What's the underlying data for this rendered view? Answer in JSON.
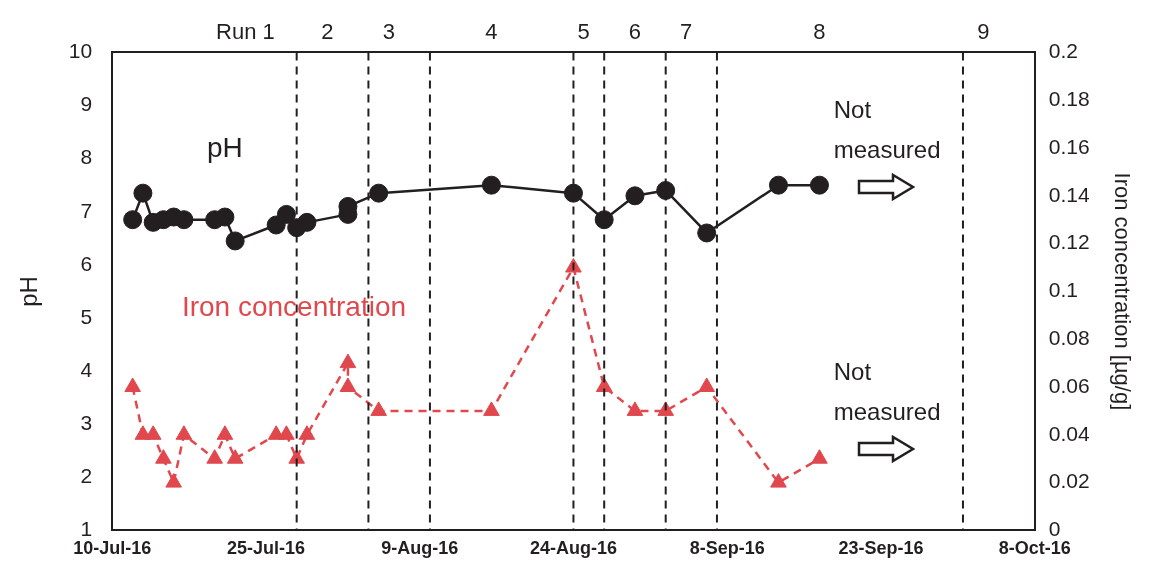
{
  "chart_data": {
    "type": "line",
    "ylabel": "pH",
    "y2label": "Iron concentration [µg/g]",
    "x": [
      "2016-07-12",
      "2016-07-13",
      "2016-07-14",
      "2016-07-15",
      "2016-07-16",
      "2016-07-17",
      "2016-07-20",
      "2016-07-21",
      "2016-07-22",
      "2016-07-26",
      "2016-07-27",
      "2016-07-28",
      "2016-07-29",
      "2016-08-02",
      "2016-08-02",
      "2016-08-05",
      "2016-08-16",
      "2016-08-24",
      "2016-08-27",
      "2016-08-30",
      "2016-09-02",
      "2016-09-06",
      "2016-09-13",
      "2016-09-17"
    ],
    "series": [
      {
        "name": "pH",
        "color": "#231f20",
        "marker": "circle",
        "line_style": "solid",
        "values": [
          6.85,
          7.35,
          6.8,
          6.85,
          6.9,
          6.85,
          6.85,
          6.9,
          6.45,
          6.75,
          6.95,
          6.7,
          6.8,
          6.95,
          7.1,
          7.35,
          7.5,
          7.35,
          6.85,
          7.3,
          7.4,
          6.6,
          7.5,
          7.5
        ]
      },
      {
        "name": "Iron concentration",
        "color": "#e0484e",
        "marker": "triangle",
        "line_style": "dashed",
        "axis": "y2",
        "values": [
          0.06,
          0.04,
          0.04,
          0.03,
          0.02,
          0.04,
          0.03,
          0.04,
          0.03,
          0.04,
          0.04,
          0.03,
          0.04,
          0.07,
          0.06,
          0.05,
          0.05,
          0.11,
          0.06,
          0.05,
          0.05,
          0.06,
          0.02,
          0.03
        ]
      }
    ],
    "xlim": [
      "2016-07-10",
      "2016-10-08"
    ],
    "xticks": [
      {
        "value": "2016-07-10",
        "label": "10-Jul-16"
      },
      {
        "value": "2016-07-25",
        "label": "25-Jul-16"
      },
      {
        "value": "2016-08-09",
        "label": "9-Aug-16"
      },
      {
        "value": "2016-08-24",
        "label": "24-Aug-16"
      },
      {
        "value": "2016-09-08",
        "label": "8-Sep-16"
      },
      {
        "value": "2016-09-23",
        "label": "23-Sep-16"
      },
      {
        "value": "2016-10-08",
        "label": "8-Oct-16"
      }
    ],
    "ylim": [
      1,
      10
    ],
    "yticks": [
      1,
      2,
      3,
      4,
      5,
      6,
      7,
      8,
      9,
      10
    ],
    "y2lim": [
      0,
      0.2
    ],
    "y2ticks": [
      0,
      0.02,
      0.04,
      0.06,
      0.08,
      0.1,
      0.12,
      0.14,
      0.16,
      0.18,
      0.2
    ],
    "ref_lines": [
      {
        "axis": "x",
        "value": "2016-07-28",
        "color": "#231f20",
        "line_style": "dashed"
      },
      {
        "axis": "x",
        "value": "2016-08-04",
        "color": "#231f20",
        "line_style": "dashed"
      },
      {
        "axis": "x",
        "value": "2016-08-10",
        "color": "#231f20",
        "line_style": "dashed"
      },
      {
        "axis": "x",
        "value": "2016-08-24",
        "color": "#231f20",
        "line_style": "dashed"
      },
      {
        "axis": "x",
        "value": "2016-08-27",
        "color": "#231f20",
        "line_style": "dashed"
      },
      {
        "axis": "x",
        "value": "2016-09-02",
        "color": "#231f20",
        "line_style": "dashed"
      },
      {
        "axis": "x",
        "value": "2016-09-07",
        "color": "#231f20",
        "line_style": "dashed"
      },
      {
        "axis": "x",
        "value": "2016-10-01",
        "color": "#231f20",
        "line_style": "dashed"
      }
    ],
    "x2lim": [
      "--07-10",
      "--10-08"
    ],
    "x2ticks": [
      {
        "value": "--07-23",
        "label": "Run 1"
      },
      {
        "value": "--07-31",
        "label": "2"
      },
      {
        "value": "--08-06",
        "label": "3"
      },
      {
        "value": "--08-16",
        "label": "4"
      },
      {
        "value": "--08-25",
        "label": "5"
      },
      {
        "value": "--08-30",
        "label": "6"
      },
      {
        "value": "--09-04",
        "label": "7"
      },
      {
        "value": "--09-17",
        "label": "8"
      },
      {
        "value": "--10-03",
        "label": "9"
      }
    ],
    "annotations": [
      "Not measured",
      "Not measured"
    ],
    "grid": false,
    "legend": false
  }
}
